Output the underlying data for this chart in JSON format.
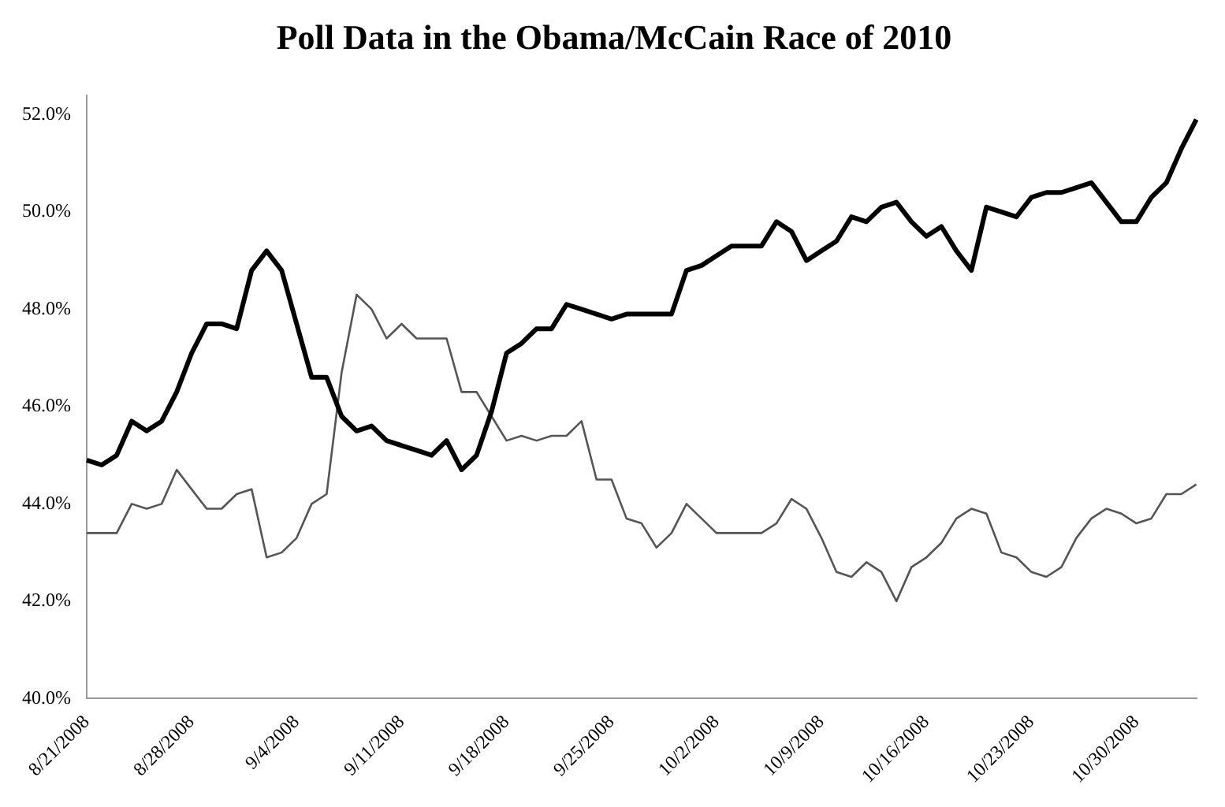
{
  "chart_data": {
    "type": "line",
    "title": "Poll Data in the Obama/McCain Race of 2010",
    "categories": [
      "8/21/2008",
      null,
      null,
      null,
      null,
      null,
      null,
      "8/28/2008",
      null,
      null,
      null,
      null,
      null,
      null,
      "9/4/2008",
      null,
      null,
      null,
      null,
      null,
      null,
      "9/11/2008",
      null,
      null,
      null,
      null,
      null,
      null,
      "9/18/2008",
      null,
      null,
      null,
      null,
      null,
      null,
      "9/25/2008",
      null,
      null,
      null,
      null,
      null,
      null,
      "10/2/2008",
      null,
      null,
      null,
      null,
      null,
      null,
      "10/9/2008",
      null,
      null,
      null,
      null,
      null,
      null,
      "10/16/2008",
      null,
      null,
      null,
      null,
      null,
      null,
      "10/23/2008",
      null,
      null,
      null,
      null,
      null,
      null,
      "10/30/2008",
      null,
      null,
      null,
      null
    ],
    "series": [
      {
        "color": "#000000",
        "values": [
          44.9,
          44.8,
          45.0,
          45.7,
          45.5,
          45.7,
          46.3,
          47.1,
          47.7,
          47.7,
          47.6,
          48.8,
          49.2,
          48.8,
          47.7,
          46.6,
          46.6,
          45.8,
          45.5,
          45.6,
          45.3,
          45.2,
          45.1,
          45.0,
          45.3,
          44.7,
          45.0,
          45.9,
          47.1,
          47.3,
          47.6,
          47.6,
          48.1,
          48.0,
          47.9,
          47.8,
          47.9,
          47.9,
          47.9,
          47.9,
          48.8,
          48.9,
          49.1,
          49.3,
          49.3,
          49.3,
          49.8,
          49.6,
          49.0,
          49.2,
          49.4,
          49.9,
          49.8,
          50.1,
          50.2,
          49.8,
          49.5,
          49.7,
          49.2,
          48.8,
          50.1,
          50.0,
          49.9,
          50.3,
          50.4,
          50.4,
          50.5,
          50.6,
          50.2,
          49.8,
          49.8,
          50.3,
          50.6,
          51.3,
          51.9
        ]
      },
      {
        "color": "#555555",
        "values": [
          43.4,
          43.4,
          43.4,
          44.0,
          43.9,
          44.0,
          44.7,
          44.3,
          43.9,
          43.9,
          44.2,
          44.3,
          42.9,
          43.0,
          43.3,
          44.0,
          44.2,
          46.7,
          48.3,
          48.0,
          47.4,
          47.7,
          47.4,
          47.4,
          47.4,
          46.3,
          46.3,
          45.8,
          45.3,
          45.4,
          45.3,
          45.4,
          45.4,
          45.7,
          44.5,
          44.5,
          43.7,
          43.6,
          43.1,
          43.4,
          44.0,
          43.7,
          43.4,
          43.4,
          43.4,
          43.4,
          43.6,
          44.1,
          43.9,
          43.3,
          42.6,
          42.5,
          42.8,
          42.6,
          42.0,
          42.7,
          42.9,
          43.2,
          43.7,
          43.9,
          43.8,
          43.0,
          42.9,
          42.6,
          42.5,
          42.7,
          43.3,
          43.7,
          43.9,
          43.8,
          43.6,
          43.7,
          44.2,
          44.2,
          44.4
        ]
      }
    ],
    "ylim": [
      40,
      52.4
    ],
    "yticks": [
      {
        "value": 40,
        "label": "40.0%"
      },
      {
        "value": 42,
        "label": "42.0%"
      },
      {
        "value": 44,
        "label": "44.0%"
      },
      {
        "value": 46,
        "label": "46.0%"
      },
      {
        "value": 48,
        "label": "48.0%"
      },
      {
        "value": 50,
        "label": "50.0%"
      },
      {
        "value": 52,
        "label": "52.0%"
      }
    ],
    "grid": false,
    "legend": false,
    "marker": "none",
    "line_style": "solid"
  }
}
